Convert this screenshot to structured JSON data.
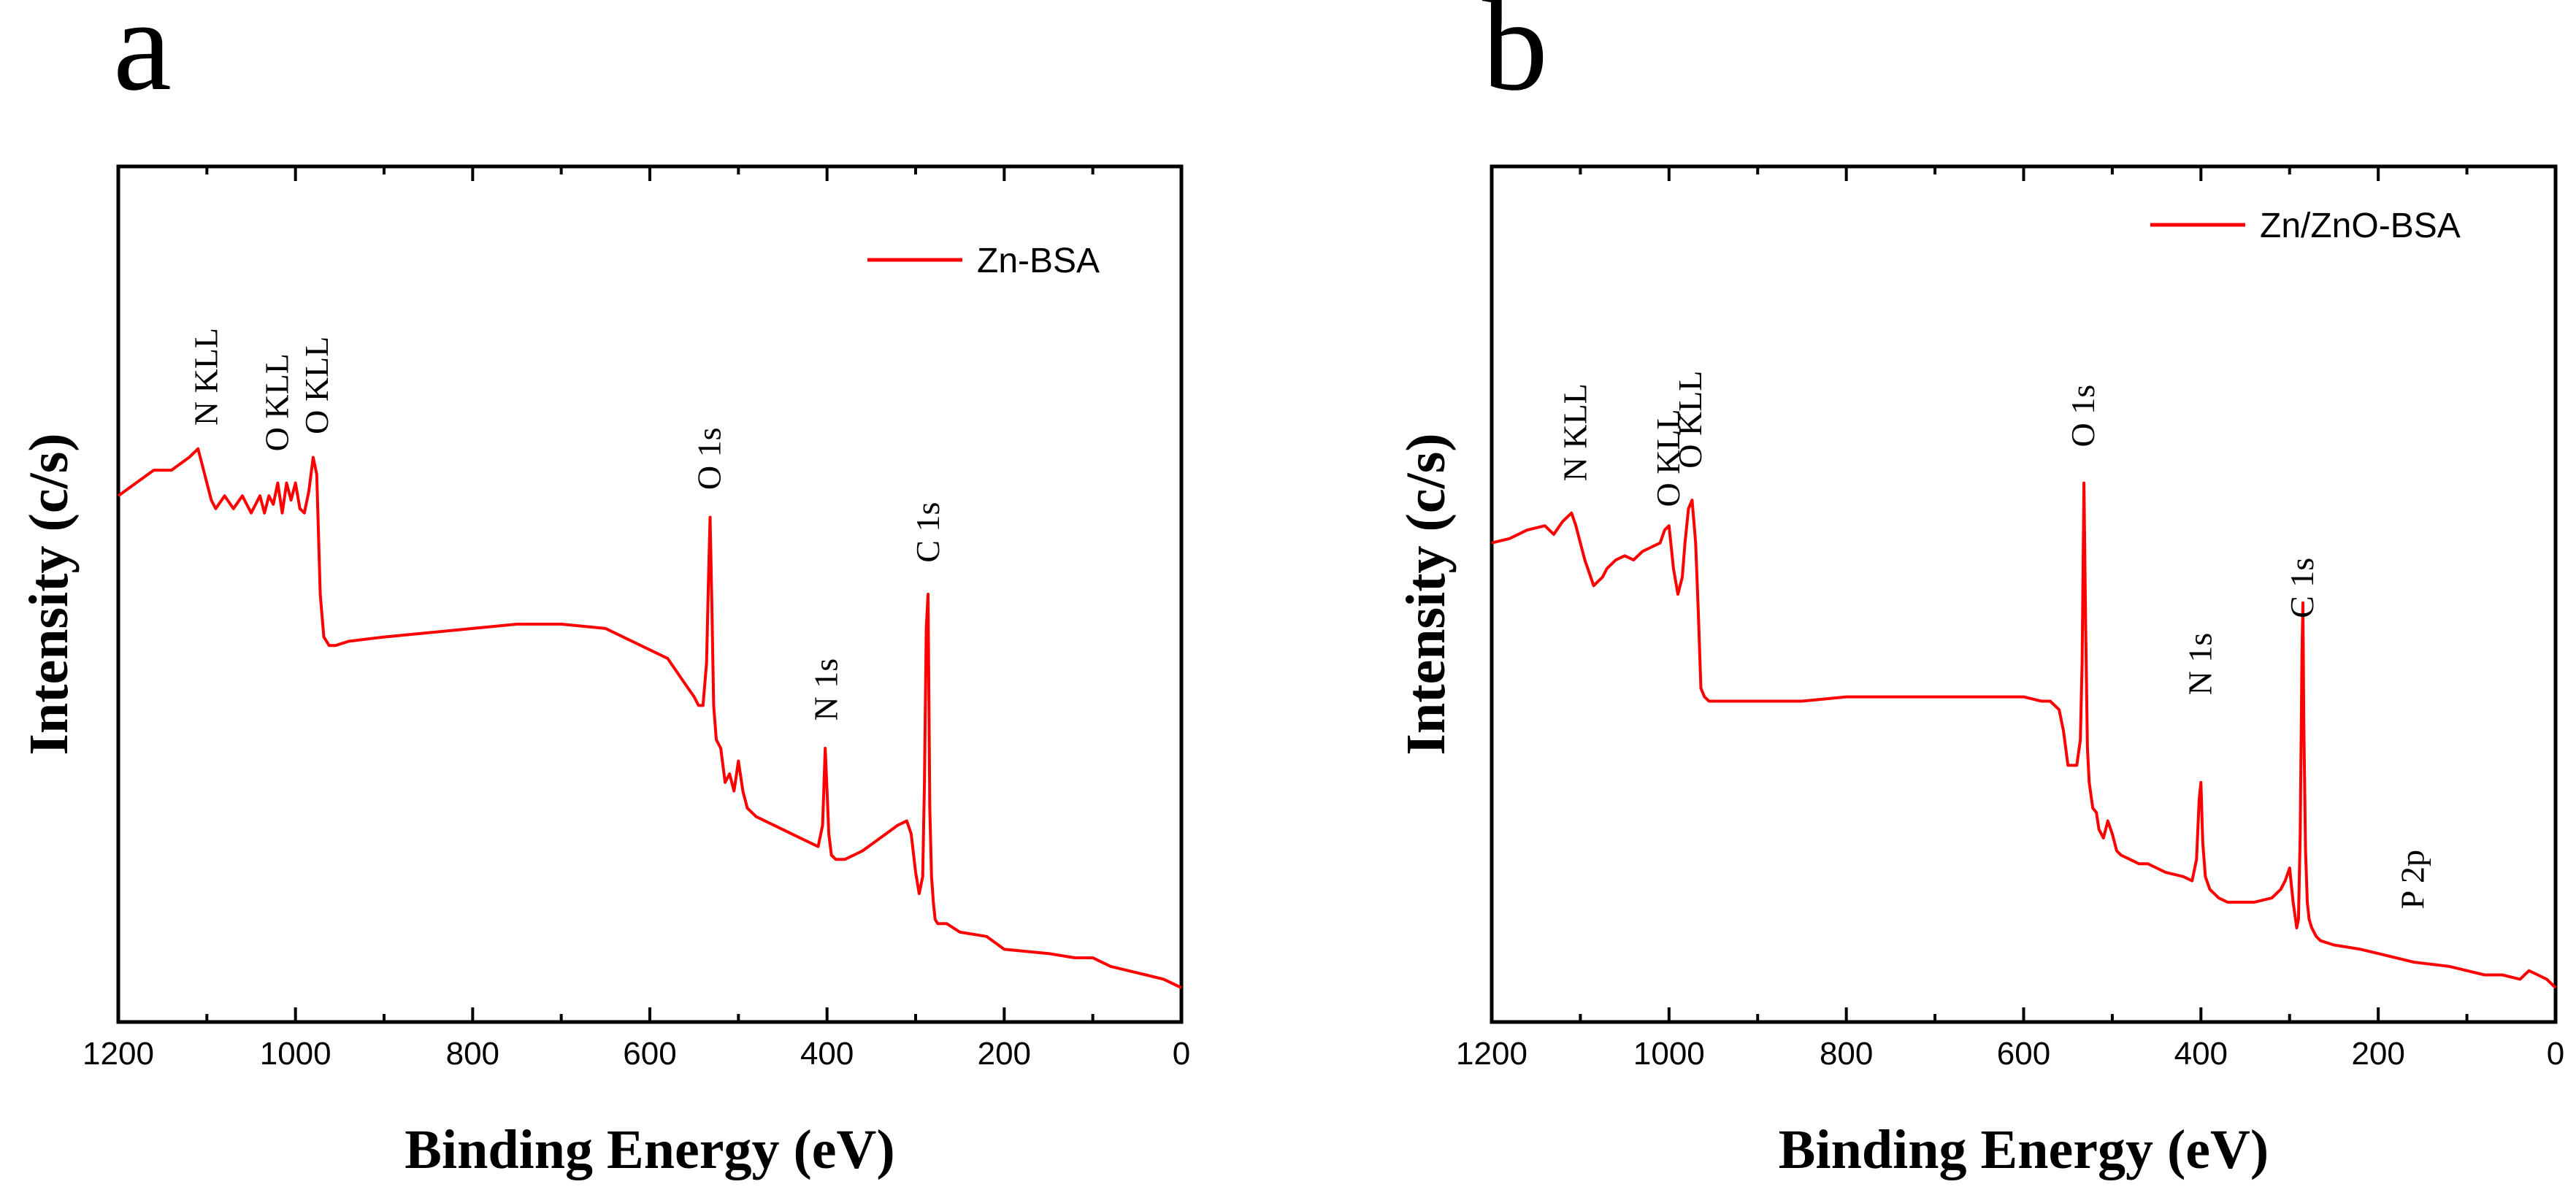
{
  "chart_data": [
    {
      "panel": "a",
      "type": "line",
      "title": "",
      "xlabel": "Binding Energy (eV)",
      "ylabel": "Intensity (c/s)",
      "xlim": [
        1200,
        0
      ],
      "ylim": [
        0,
        100
      ],
      "xticks": [
        "1200",
        "1000",
        "800",
        "600",
        "400",
        "200",
        "0"
      ],
      "legend": {
        "placement": "top-right"
      },
      "series": [
        {
          "name": "Zn-BSA",
          "color": "#ff0000",
          "x": [
            1200,
            1180,
            1160,
            1140,
            1120,
            1110,
            1105,
            1095,
            1090,
            1080,
            1070,
            1060,
            1050,
            1040,
            1035,
            1030,
            1025,
            1020,
            1015,
            1010,
            1005,
            1000,
            995,
            990,
            985,
            980,
            976,
            972,
            968,
            962,
            955,
            940,
            900,
            850,
            800,
            750,
            700,
            650,
            600,
            580,
            570,
            560,
            550,
            545,
            540,
            536,
            534,
            532,
            530,
            528,
            525,
            520,
            515,
            510,
            505,
            500,
            495,
            490,
            480,
            470,
            460,
            450,
            440,
            420,
            410,
            405,
            402,
            400,
            398,
            395,
            390,
            380,
            370,
            360,
            340,
            320,
            310,
            305,
            300,
            296,
            292,
            290,
            288,
            286,
            285,
            284,
            282,
            280,
            278,
            275,
            270,
            265,
            250,
            220,
            200,
            150,
            120,
            100,
            80,
            60,
            40,
            20,
            0
          ],
          "y": [
            61.5,
            63,
            64.5,
            64.5,
            66,
            67,
            65,
            61,
            60,
            61.5,
            60,
            61.5,
            59.5,
            61.5,
            59.5,
            61.5,
            60.5,
            63,
            59.5,
            63,
            61,
            63,
            60,
            59.5,
            62,
            66,
            64,
            50,
            45,
            44,
            44,
            44.5,
            45,
            45.5,
            46,
            46.5,
            46.5,
            46,
            43.5,
            42.5,
            41,
            39.5,
            38,
            37,
            37,
            42,
            51,
            59,
            49,
            37,
            33,
            32,
            28,
            29,
            27,
            30.5,
            27,
            25,
            24,
            23.5,
            23,
            22.5,
            22,
            21,
            20.5,
            23,
            32,
            27,
            22,
            19.5,
            19,
            19,
            19.5,
            20,
            21.5,
            23,
            23.5,
            22,
            17.5,
            15,
            17,
            28,
            46,
            50,
            38,
            25,
            17,
            14,
            12,
            11.5,
            11.5,
            11.5,
            10.5,
            10,
            8.5,
            8,
            7.5,
            7.5,
            6.5,
            6,
            5.5,
            5,
            4
          ]
        }
      ],
      "annotations": [
        {
          "text": "N KLL",
          "x": 1100,
          "y": 68.5
        },
        {
          "text": "O KLL",
          "x": 1020,
          "y": 65.5
        },
        {
          "text": "O KLL",
          "x": 975,
          "y": 67.5
        },
        {
          "text": "O 1s",
          "x": 532,
          "y": 61
        },
        {
          "text": "N 1s",
          "x": 400,
          "y": 34
        },
        {
          "text": "C 1s",
          "x": 285,
          "y": 52.5
        }
      ]
    },
    {
      "panel": "b",
      "type": "line",
      "title": "",
      "xlabel": "Binding Energy (eV)",
      "ylabel": "Intensity (c/s)",
      "xlim": [
        1200,
        0
      ],
      "ylim": [
        0,
        100
      ],
      "xticks": [
        "1200",
        "1000",
        "800",
        "600",
        "400",
        "200",
        "0"
      ],
      "legend": {
        "placement": "top-right"
      },
      "series": [
        {
          "name": "Zn/ZnO-BSA",
          "color": "#ff0000",
          "x": [
            1200,
            1180,
            1160,
            1140,
            1130,
            1120,
            1110,
            1105,
            1100,
            1095,
            1090,
            1085,
            1080,
            1075,
            1070,
            1060,
            1050,
            1040,
            1030,
            1020,
            1010,
            1005,
            1000,
            998,
            995,
            990,
            985,
            982,
            978,
            974,
            970,
            967,
            964,
            960,
            955,
            950,
            900,
            850,
            800,
            750,
            700,
            650,
            600,
            580,
            570,
            560,
            555,
            550,
            545,
            540,
            536,
            534,
            532,
            530,
            528,
            526,
            522,
            518,
            515,
            510,
            505,
            500,
            495,
            490,
            480,
            470,
            460,
            450,
            440,
            420,
            410,
            405,
            402,
            400,
            398,
            395,
            390,
            380,
            370,
            360,
            340,
            320,
            310,
            305,
            300,
            296,
            292,
            290,
            288,
            286,
            285,
            284,
            282,
            280,
            278,
            275,
            270,
            265,
            250,
            220,
            200,
            180,
            160,
            120,
            100,
            80,
            60,
            40,
            30,
            20,
            10,
            0
          ],
          "y": [
            56,
            56.5,
            57.5,
            58,
            57,
            58.5,
            59.5,
            58,
            56,
            54,
            52.5,
            51,
            51.5,
            52,
            53,
            54,
            54.5,
            54,
            55,
            55.5,
            56,
            57.5,
            58,
            56,
            53,
            50,
            52,
            56,
            60,
            61,
            56,
            48,
            39,
            38,
            37.5,
            37.5,
            37.5,
            37.5,
            38,
            38,
            38,
            38,
            38,
            37.5,
            37.5,
            36.5,
            34,
            30,
            30,
            30,
            33,
            42,
            63,
            46,
            32,
            28,
            25,
            24.5,
            22.5,
            21.5,
            23.5,
            22,
            20,
            19.5,
            19,
            18.5,
            18.5,
            18,
            17.5,
            17,
            16.5,
            19,
            26,
            28,
            21,
            17,
            15.5,
            14.5,
            14,
            14,
            14,
            14.5,
            15.5,
            16.5,
            18,
            14,
            11,
            12,
            22,
            43,
            49,
            35,
            20,
            14,
            12,
            11,
            10,
            9.5,
            9,
            8.5,
            8,
            7.5,
            7,
            6.5,
            6,
            5.5,
            5.5,
            5,
            6,
            5.5,
            5,
            4
          ]
        }
      ],
      "annotations": [
        {
          "text": "N KLL",
          "x": 1105,
          "y": 62
        },
        {
          "text": "O KLL",
          "x": 1000,
          "y": 59
        },
        {
          "text": "O KLL",
          "x": 975,
          "y": 63.5
        },
        {
          "text": "O 1s",
          "x": 532,
          "y": 66
        },
        {
          "text": "N 1s",
          "x": 400,
          "y": 37
        },
        {
          "text": "C 1s",
          "x": 285,
          "y": 46
        },
        {
          "text": "P 2p",
          "x": 160,
          "y": 12
        }
      ]
    }
  ]
}
